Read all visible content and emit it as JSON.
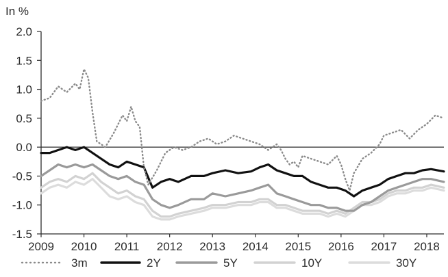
{
  "chart_data": {
    "type": "line",
    "unit_label": "In %",
    "title": "",
    "xlabel": "",
    "ylabel": "",
    "xlim": [
      2009,
      2018.4
    ],
    "ylim": [
      -1.5,
      2.0
    ],
    "x_ticks": [
      "2009",
      "2010",
      "2011",
      "2012",
      "2013",
      "2014",
      "2015",
      "2016",
      "2017",
      "2018"
    ],
    "y_ticks": [
      "2.0",
      "1.5",
      "1.0",
      "0.5",
      "0.0",
      "-0.5",
      "-1.0",
      "-1.5"
    ],
    "grid": false,
    "zero_line": true,
    "legend_position": "bottom",
    "colors": {
      "3m": "#8a8a8a",
      "2Y": "#111111",
      "5Y": "#9a9a9a",
      "10Y": "#d2d2d2",
      "30Y": "#dcdcdc"
    },
    "series": [
      {
        "name": "3m",
        "style": "dotted",
        "x": [
          2009.0,
          2009.2,
          2009.4,
          2009.6,
          2009.8,
          2009.9,
          2010.0,
          2010.1,
          2010.2,
          2010.3,
          2010.5,
          2010.7,
          2010.9,
          2011.0,
          2011.1,
          2011.2,
          2011.3,
          2011.4,
          2011.5,
          2011.7,
          2011.9,
          2012.1,
          2012.3,
          2012.5,
          2012.7,
          2012.9,
          2013.1,
          2013.3,
          2013.5,
          2013.7,
          2013.9,
          2014.1,
          2014.3,
          2014.5,
          2014.6,
          2014.7,
          2014.8,
          2014.9,
          2015.0,
          2015.1,
          2015.3,
          2015.5,
          2015.7,
          2015.9,
          2016.0,
          2016.1,
          2016.2,
          2016.3,
          2016.5,
          2016.7,
          2016.9,
          2017.0,
          2017.2,
          2017.4,
          2017.6,
          2017.8,
          2018.0,
          2018.2,
          2018.4
        ],
        "y": [
          0.8,
          0.85,
          1.05,
          0.95,
          1.1,
          1.0,
          1.35,
          1.2,
          0.6,
          0.1,
          0.0,
          0.25,
          0.55,
          0.45,
          0.7,
          0.45,
          0.35,
          -0.35,
          -0.65,
          -0.4,
          -0.1,
          0.0,
          -0.05,
          0.0,
          0.1,
          0.15,
          0.05,
          0.1,
          0.2,
          0.15,
          0.1,
          0.05,
          -0.05,
          0.05,
          -0.05,
          -0.2,
          -0.3,
          -0.25,
          -0.35,
          -0.15,
          -0.2,
          -0.25,
          -0.3,
          -0.15,
          -0.3,
          -0.55,
          -0.75,
          -0.45,
          -0.2,
          -0.1,
          0.05,
          0.2,
          0.25,
          0.3,
          0.15,
          0.3,
          0.4,
          0.55,
          0.5
        ]
      },
      {
        "name": "2Y",
        "style": "solid",
        "x": [
          2009.0,
          2009.2,
          2009.4,
          2009.6,
          2009.8,
          2010.0,
          2010.2,
          2010.4,
          2010.6,
          2010.8,
          2011.0,
          2011.2,
          2011.4,
          2011.6,
          2011.8,
          2012.0,
          2012.2,
          2012.5,
          2012.8,
          2013.0,
          2013.3,
          2013.6,
          2013.9,
          2014.1,
          2014.3,
          2014.5,
          2014.7,
          2014.9,
          2015.1,
          2015.3,
          2015.5,
          2015.7,
          2015.9,
          2016.1,
          2016.3,
          2016.5,
          2016.7,
          2016.9,
          2017.1,
          2017.3,
          2017.5,
          2017.7,
          2017.9,
          2018.1,
          2018.4
        ],
        "y": [
          -0.1,
          -0.1,
          -0.05,
          0.0,
          -0.05,
          0.0,
          -0.1,
          -0.2,
          -0.3,
          -0.35,
          -0.25,
          -0.3,
          -0.35,
          -0.7,
          -0.6,
          -0.55,
          -0.6,
          -0.5,
          -0.5,
          -0.45,
          -0.4,
          -0.45,
          -0.42,
          -0.35,
          -0.3,
          -0.4,
          -0.45,
          -0.5,
          -0.5,
          -0.6,
          -0.65,
          -0.7,
          -0.7,
          -0.75,
          -0.85,
          -0.75,
          -0.7,
          -0.65,
          -0.55,
          -0.5,
          -0.45,
          -0.45,
          -0.4,
          -0.38,
          -0.42
        ]
      },
      {
        "name": "5Y",
        "style": "solid",
        "x": [
          2009.0,
          2009.2,
          2009.4,
          2009.6,
          2009.8,
          2010.0,
          2010.2,
          2010.4,
          2010.6,
          2010.8,
          2011.0,
          2011.2,
          2011.4,
          2011.6,
          2011.8,
          2012.0,
          2012.2,
          2012.5,
          2012.8,
          2013.0,
          2013.3,
          2013.6,
          2013.9,
          2014.1,
          2014.3,
          2014.5,
          2014.7,
          2014.9,
          2015.1,
          2015.3,
          2015.5,
          2015.7,
          2015.9,
          2016.1,
          2016.3,
          2016.5,
          2016.7,
          2016.9,
          2017.1,
          2017.3,
          2017.5,
          2017.7,
          2017.9,
          2018.1,
          2018.4
        ],
        "y": [
          -0.5,
          -0.4,
          -0.3,
          -0.35,
          -0.3,
          -0.35,
          -0.3,
          -0.4,
          -0.5,
          -0.55,
          -0.5,
          -0.6,
          -0.65,
          -0.9,
          -1.0,
          -1.05,
          -1.0,
          -0.9,
          -0.9,
          -0.8,
          -0.85,
          -0.8,
          -0.75,
          -0.7,
          -0.65,
          -0.8,
          -0.85,
          -0.9,
          -0.95,
          -1.0,
          -1.0,
          -1.05,
          -1.05,
          -1.1,
          -1.1,
          -1.0,
          -0.95,
          -0.85,
          -0.75,
          -0.7,
          -0.65,
          -0.6,
          -0.55,
          -0.55,
          -0.6
        ]
      },
      {
        "name": "10Y",
        "style": "solid",
        "x": [
          2009.0,
          2009.2,
          2009.4,
          2009.6,
          2009.8,
          2010.0,
          2010.2,
          2010.4,
          2010.6,
          2010.8,
          2011.0,
          2011.2,
          2011.4,
          2011.6,
          2011.8,
          2012.0,
          2012.2,
          2012.5,
          2012.8,
          2013.0,
          2013.3,
          2013.6,
          2013.9,
          2014.1,
          2014.3,
          2014.5,
          2014.7,
          2014.9,
          2015.1,
          2015.3,
          2015.5,
          2015.7,
          2015.9,
          2016.1,
          2016.3,
          2016.5,
          2016.7,
          2016.9,
          2017.1,
          2017.3,
          2017.5,
          2017.7,
          2017.9,
          2018.1,
          2018.4
        ],
        "y": [
          -0.7,
          -0.6,
          -0.55,
          -0.6,
          -0.5,
          -0.55,
          -0.45,
          -0.6,
          -0.7,
          -0.8,
          -0.75,
          -0.85,
          -0.9,
          -1.1,
          -1.2,
          -1.2,
          -1.15,
          -1.1,
          -1.05,
          -1.0,
          -1.0,
          -0.95,
          -0.95,
          -0.9,
          -0.9,
          -1.0,
          -1.0,
          -1.05,
          -1.1,
          -1.1,
          -1.1,
          -1.15,
          -1.1,
          -1.15,
          -1.05,
          -0.95,
          -0.95,
          -0.9,
          -0.8,
          -0.75,
          -0.75,
          -0.7,
          -0.7,
          -0.65,
          -0.7
        ]
      },
      {
        "name": "30Y",
        "style": "solid",
        "x": [
          2009.0,
          2009.2,
          2009.4,
          2009.6,
          2009.8,
          2010.0,
          2010.2,
          2010.4,
          2010.6,
          2010.8,
          2011.0,
          2011.2,
          2011.4,
          2011.6,
          2011.8,
          2012.0,
          2012.2,
          2012.5,
          2012.8,
          2013.0,
          2013.3,
          2013.6,
          2013.9,
          2014.1,
          2014.3,
          2014.5,
          2014.7,
          2014.9,
          2015.1,
          2015.3,
          2015.5,
          2015.7,
          2015.9,
          2016.1,
          2016.3,
          2016.5,
          2016.7,
          2016.9,
          2017.1,
          2017.3,
          2017.5,
          2017.7,
          2017.9,
          2018.1,
          2018.4
        ],
        "y": [
          -0.8,
          -0.7,
          -0.65,
          -0.7,
          -0.6,
          -0.65,
          -0.55,
          -0.7,
          -0.85,
          -0.9,
          -0.85,
          -0.95,
          -1.0,
          -1.2,
          -1.25,
          -1.25,
          -1.2,
          -1.15,
          -1.1,
          -1.05,
          -1.05,
          -1.0,
          -1.0,
          -0.95,
          -0.95,
          -1.05,
          -1.05,
          -1.1,
          -1.15,
          -1.15,
          -1.15,
          -1.2,
          -1.15,
          -1.2,
          -1.1,
          -1.0,
          -1.0,
          -0.95,
          -0.85,
          -0.8,
          -0.8,
          -0.75,
          -0.75,
          -0.7,
          -0.75
        ]
      }
    ]
  }
}
